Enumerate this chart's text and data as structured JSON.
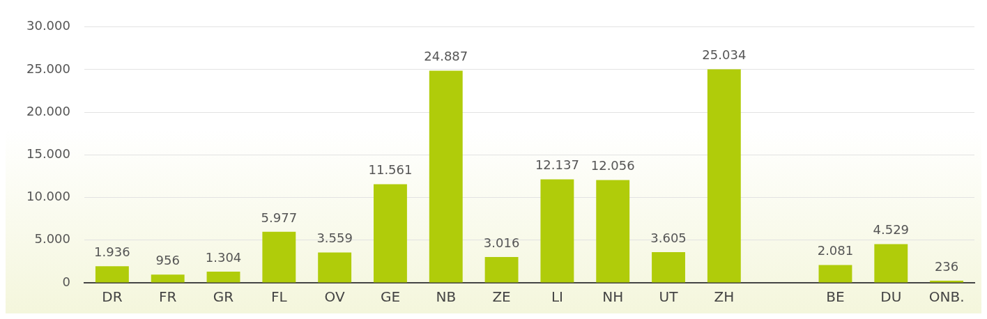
{
  "chart_data": {
    "type": "bar",
    "categories": [
      "DR",
      "FR",
      "GR",
      "FL",
      "OV",
      "GE",
      "NB",
      "ZE",
      "LI",
      "NH",
      "UT",
      "ZH",
      null,
      "BE",
      "DU",
      "ONB."
    ],
    "values": [
      1936,
      956,
      1304,
      5977,
      3559,
      11561,
      24887,
      3016,
      12137,
      12056,
      3605,
      25034,
      null,
      2081,
      4529,
      236
    ],
    "value_labels": [
      "1.936",
      "956",
      "1.304",
      "5.977",
      "3.559",
      "11.561",
      "24.887",
      "3.016",
      "12.137",
      "12.056",
      "3.605",
      "25.034",
      null,
      "2.081",
      "4.529",
      "236"
    ],
    "color": "#b0cc0a",
    "ylim": [
      0,
      30000
    ],
    "yticks": [
      0,
      {
        "value": 5000,
        "label": "5.000"
      },
      {
        "value": 10000,
        "label": "10.000"
      },
      {
        "value": 15000,
        "label": "15.000"
      },
      {
        "value": 20000,
        "label": "20.000"
      },
      {
        "value": 25000,
        "label": "25.000"
      },
      {
        "value": 30000,
        "label": "30.000"
      }
    ],
    "grid": "y",
    "legend": false
  }
}
